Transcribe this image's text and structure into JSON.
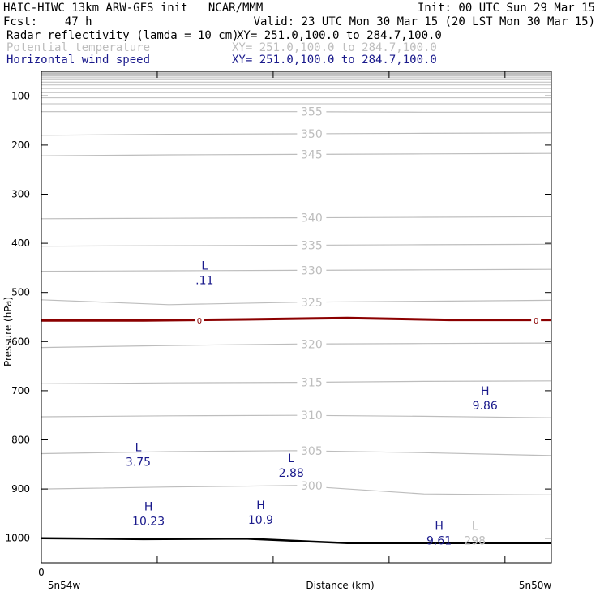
{
  "header": {
    "line1_left": "HAIC-HIWC 13km ARW-GFS init   NCAR/MMM",
    "line1_right": "Init: 00 UTC Sun 29 Mar 15",
    "line2_left": "Fcst:    47 h",
    "line2_right": "Valid: 23 UTC Mon 30 Mar 15 (20 LST Mon 30 Mar 15)",
    "fields": [
      {
        "name": "Radar reflectivity (lamda = 10 cm)",
        "xy": "XY= 251.0,100.0 to 284.7,100.0",
        "color": "#000000"
      },
      {
        "name": "Potential temperature",
        "xy": "XY= 251.0,100.0 to 284.7,100.0",
        "color": "#bdbdbd"
      },
      {
        "name": "Horizontal wind speed",
        "xy": "XY= 251.0,100.0 to 284.7,100.0",
        "color": "#1a1a8c"
      }
    ]
  },
  "chart_data": {
    "type": "line",
    "title": "",
    "xlabel": "Distance (km)",
    "ylabel": "Pressure (hPa)",
    "x_left_label": "5n54w",
    "x_right_label": "5n50w",
    "x_origin_label": "0",
    "y_ticks": [
      100,
      200,
      300,
      400,
      500,
      600,
      700,
      800,
      900,
      1000
    ],
    "ylim": [
      50,
      1050
    ],
    "y_inverted": true,
    "colors": {
      "theta": "#bdbdbd",
      "reflectivity": "#8b0000",
      "terrain": "#000000",
      "wind": "#1a1a8c"
    },
    "theta_contours": [
      {
        "label": "355",
        "p": [
          132,
          132,
          132,
          133,
          133
        ]
      },
      {
        "label": "350",
        "p": [
          180,
          178,
          177,
          176,
          175
        ]
      },
      {
        "label": "345",
        "p": [
          222,
          220,
          219,
          218,
          217
        ]
      },
      {
        "label": "340",
        "p": [
          350,
          349,
          348,
          347,
          346
        ]
      },
      {
        "label": "335",
        "p": [
          406,
          405,
          404,
          403,
          402
        ]
      },
      {
        "label": "330",
        "p": [
          457,
          456,
          455,
          454,
          453
        ]
      },
      {
        "label": "325",
        "p": [
          515,
          525,
          520,
          518,
          516
        ]
      },
      {
        "label": "320",
        "p": [
          612,
          608,
          605,
          604,
          603
        ]
      },
      {
        "label": "315",
        "p": [
          686,
          684,
          683,
          681,
          680
        ]
      },
      {
        "label": "310",
        "p": [
          753,
          751,
          750,
          752,
          755
        ]
      },
      {
        "label": "305",
        "p": [
          828,
          824,
          822,
          826,
          832
        ]
      },
      {
        "label": "300",
        "p": [
          900,
          896,
          893,
          910,
          912
        ]
      }
    ],
    "reflectivity_zero_contour": {
      "label": "0",
      "p": [
        557,
        557,
        555,
        552,
        556,
        556
      ]
    },
    "terrain_pressure": [
      1000,
      1002,
      1001,
      1010,
      1010,
      1010
    ],
    "wind_extrema": [
      {
        "type": "L",
        "value": ".11",
        "x": 0.32,
        "p": 470
      },
      {
        "type": "H",
        "value": "9.86",
        "x": 0.87,
        "p": 725
      },
      {
        "type": "L",
        "value": "3.75",
        "x": 0.19,
        "p": 840
      },
      {
        "type": "L",
        "value": "2.88",
        "x": 0.49,
        "p": 862
      },
      {
        "type": "H",
        "value": "10.23",
        "x": 0.21,
        "p": 960
      },
      {
        "type": "H",
        "value": "10.9",
        "x": 0.43,
        "p": 958
      },
      {
        "type": "H",
        "value": "9.61",
        "x": 0.78,
        "p": 1000
      }
    ],
    "theta_extrema": [
      {
        "type": "L",
        "value": "298",
        "x": 0.85,
        "p": 1000
      }
    ]
  }
}
